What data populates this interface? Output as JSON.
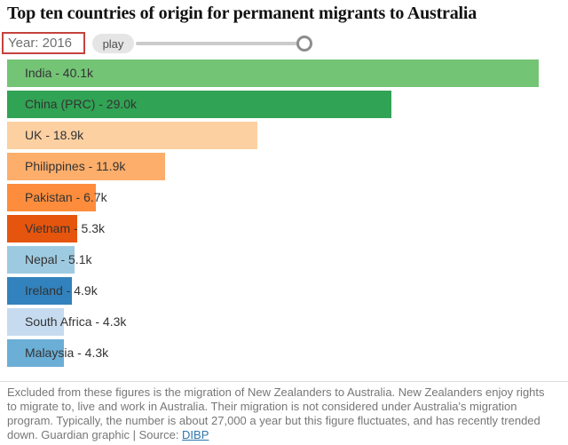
{
  "header": {
    "title": "Top ten countries of origin for permanent migrants to Australia"
  },
  "controls": {
    "year_label": "Year: 2016",
    "play_label": "play"
  },
  "chart_data": {
    "type": "bar",
    "orientation": "horizontal",
    "title": "Top ten countries of origin for permanent migrants to Australia",
    "year": "2016",
    "unit": "thousands of permanent migrants",
    "max_value": 40.1,
    "bars": [
      {
        "country": "India",
        "value": 40.1,
        "label": "India - 40.1k",
        "color": "#74c476"
      },
      {
        "country": "China (PRC)",
        "value": 29.0,
        "label": "China (PRC) - 29.0k",
        "color": "#31a354"
      },
      {
        "country": "UK",
        "value": 18.9,
        "label": "UK - 18.9k",
        "color": "#fdd0a2"
      },
      {
        "country": "Philippines",
        "value": 11.9,
        "label": "Philippines - 11.9k",
        "color": "#fdae6b"
      },
      {
        "country": "Pakistan",
        "value": 6.7,
        "label": "Pakistan - 6.7k",
        "color": "#fd8d3c"
      },
      {
        "country": "Vietnam",
        "value": 5.3,
        "label": "Vietnam - 5.3k",
        "color": "#e6550d"
      },
      {
        "country": "Nepal",
        "value": 5.1,
        "label": "Nepal - 5.1k",
        "color": "#9ecae1"
      },
      {
        "country": "Ireland",
        "value": 4.9,
        "label": "Ireland - 4.9k",
        "color": "#3182bd"
      },
      {
        "country": "South Africa",
        "value": 4.3,
        "label": "South Africa - 4.3k",
        "color": "#c6dbef"
      },
      {
        "country": "Malaysia",
        "value": 4.3,
        "label": "Malaysia - 4.3k",
        "color": "#6baed6"
      }
    ]
  },
  "footer": {
    "note": "Excluded from these figures is the migration of New Zealanders to Australia. New Zealanders enjoy rights to migrate to, live and work in Australia. Their migration is not considered under Australia's migration program. Typically, the number is about 27,000 a year but this figure fluctuates, and has recently trended down. Guardian graphic | Source: ",
    "source_link_label": "DIBP"
  }
}
